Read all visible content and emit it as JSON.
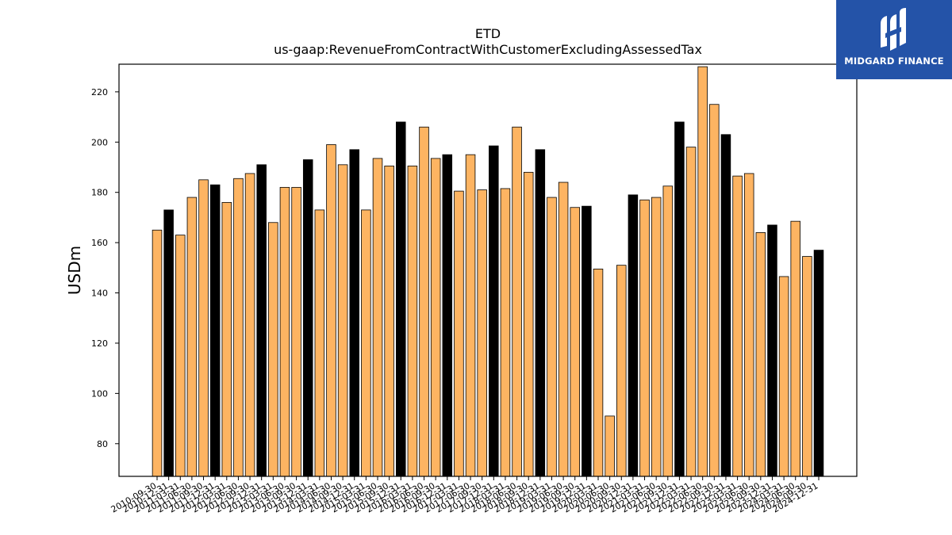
{
  "logo": {
    "text": "MIDGARD FINANCE",
    "icon": "midgard-m-icon",
    "background": "#2453a8"
  },
  "chart_data": {
    "type": "bar",
    "title": "ETD",
    "subtitle": "us-gaap:RevenueFromContractWithCustomerExcludingAssessedTax",
    "xlabel": "",
    "ylabel": "USDm",
    "ylim": [
      67,
      231
    ],
    "yticks": [
      80,
      100,
      120,
      140,
      160,
      180,
      200,
      220
    ],
    "grid": false,
    "colors": {
      "quarter": "#fdb462",
      "annual": "#000000",
      "edge": "#000000"
    },
    "categories": [
      "2010-09-30",
      "2010-12-31",
      "2011-03-31",
      "2011-06-30",
      "2011-09-30",
      "2011-12-31",
      "2012-03-31",
      "2012-06-30",
      "2012-09-30",
      "2012-12-31",
      "2013-03-31",
      "2013-06-30",
      "2013-09-30",
      "2013-12-31",
      "2014-03-31",
      "2014-06-30",
      "2014-09-30",
      "2014-12-31",
      "2015-03-31",
      "2015-06-30",
      "2015-09-30",
      "2015-12-31",
      "2016-03-31",
      "2016-06-30",
      "2016-09-30",
      "2016-12-31",
      "2017-03-31",
      "2017-06-30",
      "2017-09-30",
      "2017-12-31",
      "2018-03-31",
      "2018-06-30",
      "2018-09-30",
      "2018-12-31",
      "2019-03-31",
      "2019-06-30",
      "2019-09-30",
      "2019-12-31",
      "2020-03-31",
      "2020-06-30",
      "2020-09-30",
      "2020-12-31",
      "2021-03-31",
      "2021-06-30",
      "2021-09-30",
      "2021-12-31",
      "2022-03-31",
      "2022-06-30",
      "2022-09-30",
      "2022-12-31",
      "2023-03-31",
      "2023-06-30",
      "2023-09-30",
      "2023-12-31",
      "2024-03-31",
      "2024-06-30",
      "2024-09-30",
      "2024-12-31"
    ],
    "values": [
      165,
      173,
      163,
      178,
      185,
      183,
      176,
      185.5,
      187.5,
      191,
      168,
      182,
      182,
      193,
      173,
      199,
      191,
      197,
      173,
      193.5,
      190.5,
      208,
      190.5,
      206,
      193.5,
      195,
      180.5,
      195,
      181,
      198.5,
      181.5,
      206,
      188,
      197,
      178,
      184,
      174,
      174.5,
      149.5,
      91,
      151,
      179,
      177,
      178,
      182.5,
      208,
      198,
      230,
      215,
      203,
      186.5,
      187.5,
      164,
      167,
      146.5,
      168.5,
      154.5,
      157
    ],
    "annual": [
      false,
      true,
      false,
      false,
      false,
      true,
      false,
      false,
      false,
      true,
      false,
      false,
      false,
      true,
      false,
      false,
      false,
      true,
      false,
      false,
      false,
      true,
      false,
      false,
      false,
      true,
      false,
      false,
      false,
      true,
      false,
      false,
      false,
      true,
      false,
      false,
      false,
      true,
      false,
      false,
      false,
      true,
      false,
      false,
      false,
      true,
      false,
      false,
      false,
      true,
      false,
      false,
      false,
      true,
      false,
      false,
      false,
      true
    ]
  }
}
